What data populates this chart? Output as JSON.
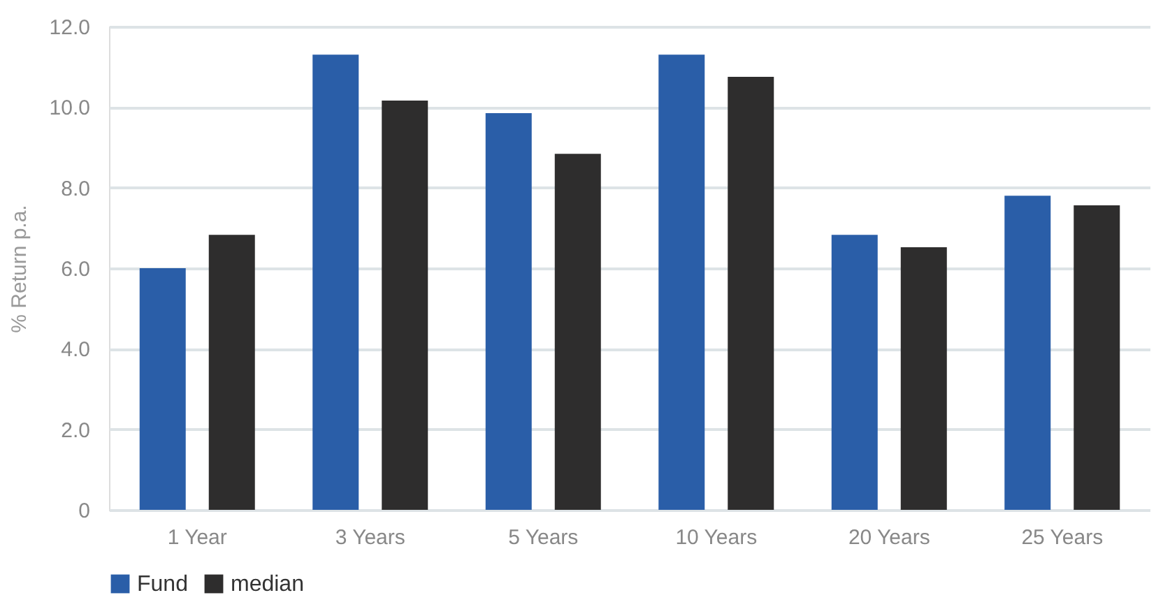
{
  "chart_data": {
    "type": "bar",
    "ylabel": "% Return p.a.",
    "categories": [
      "1 Year",
      "3 Years",
      "5 Years",
      "10 Years",
      "20 Years",
      "25 Years"
    ],
    "series": [
      {
        "name": "Fund",
        "color": "#2a5ea8",
        "values": [
          6.0,
          11.3,
          9.85,
          11.3,
          6.83,
          7.8
        ]
      },
      {
        "name": "median",
        "color": "#2e2d2d",
        "values": [
          6.83,
          10.16,
          8.84,
          10.75,
          6.52,
          7.56
        ]
      }
    ],
    "ylim": [
      0,
      12
    ],
    "yticks": [
      {
        "value": 0,
        "label": "0"
      },
      {
        "value": 2,
        "label": "2.0"
      },
      {
        "value": 4,
        "label": "4.0"
      },
      {
        "value": 6,
        "label": "6.0"
      },
      {
        "value": 8,
        "label": "8.0"
      },
      {
        "value": 10,
        "label": "10.0"
      },
      {
        "value": 12,
        "label": "12.0"
      }
    ],
    "grid": "y",
    "legend": "bottom"
  }
}
